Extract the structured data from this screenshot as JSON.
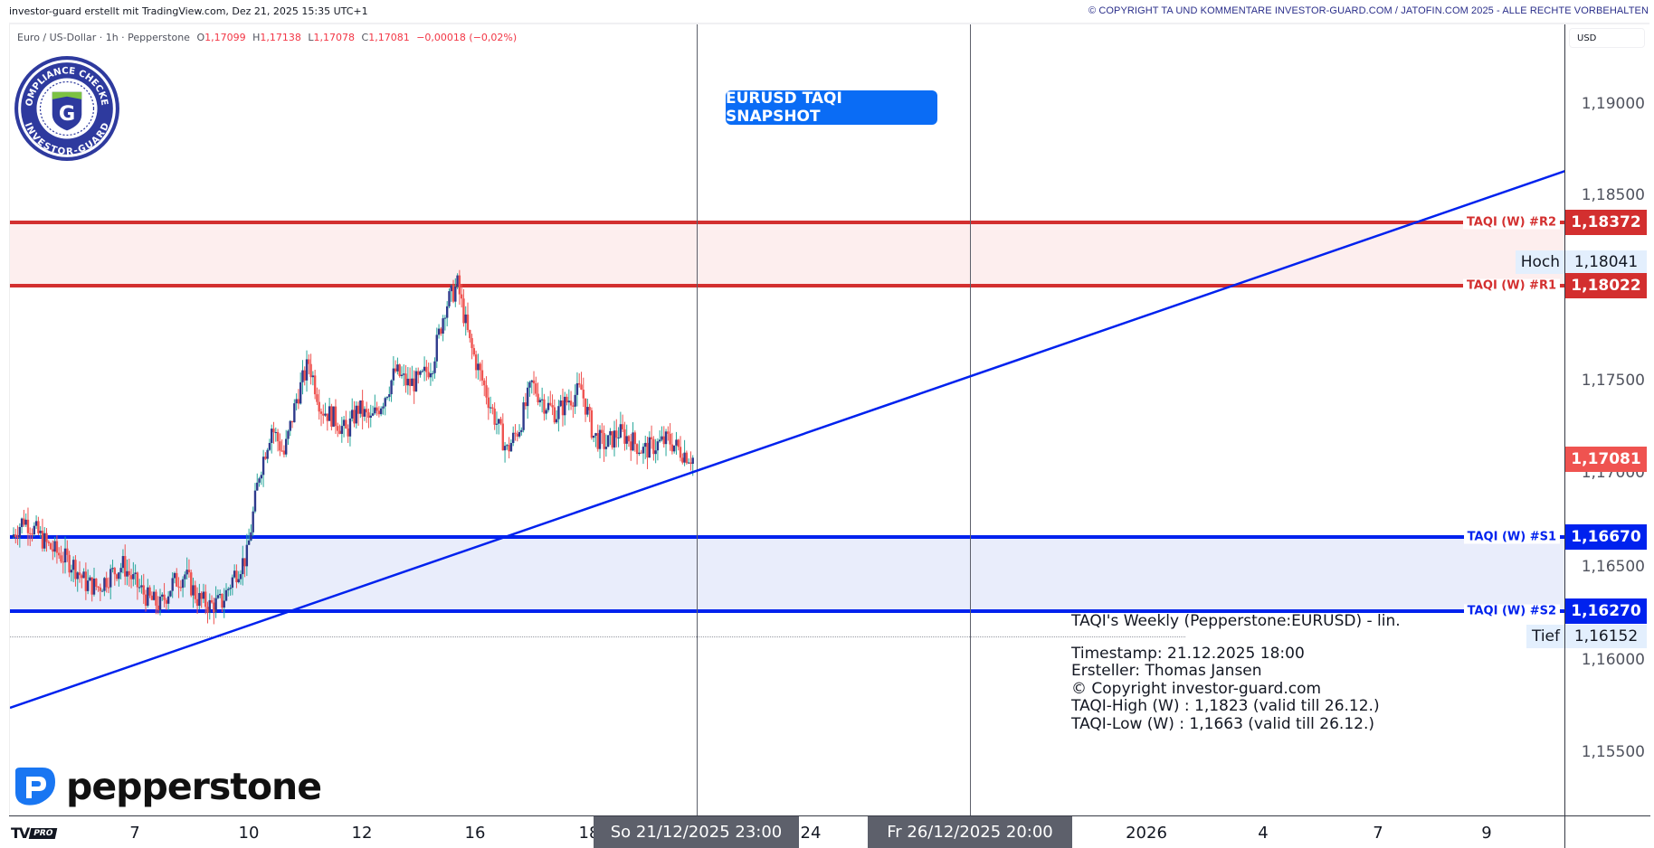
{
  "header": {
    "created_by": "investor-guard erstellt mit TradingView.com, Dez 21, 2025 15:35 UTC+1",
    "copyright": "© COPYRIGHT TA UND KOMMENTARE INVESTOR-GUARD.COM / JATOFIN.COM 2025 - ALLE RECHTE VORBEHALTEN"
  },
  "legend": {
    "symbol": "Euro / US-Dollar · 1h · Pepperstone",
    "o_label": "O",
    "o": "1,17099",
    "h_label": "H",
    "h": "1,17138",
    "l_label": "L",
    "l": "1,17078",
    "c_label": "C",
    "c": "1,17081",
    "change": "−0,00018 (−0,02%)"
  },
  "badge": {
    "top_text": "COMPLIANCE CHECKED",
    "bottom_text": "INVESTOR-GUARD",
    "letter": "G"
  },
  "snapshot_button": "EURUSD TAQI SNAPSHOT",
  "info_box": {
    "title": "TAQI's Weekly (Pepperstone:EURUSD) - lin.",
    "timestamp": "Timestamp: 21.12.2025 18:00",
    "author": "Ersteller: Thomas Jansen",
    "copyright": "© Copyright investor-guard.com",
    "high": "TAQI-High (W) : 1,1823 (valid till 26.12.)",
    "low": "TAQI-Low (W) : 1,1663 (valid till 26.12.)"
  },
  "broker_logo": "pepperstone",
  "price_axis": {
    "currency": "USD",
    "ticks": [
      "1,19000",
      "1,18500",
      "1,17500",
      "1,17000",
      "1,16500",
      "1,16000",
      "1,15500"
    ],
    "current_price": "1,17081",
    "high_label": "Hoch",
    "high_value": "1,18041",
    "low_label": "Tief",
    "low_value": "1,16152"
  },
  "levels": {
    "r2": {
      "label": "TAQI (W) #R2",
      "value": "1,18372",
      "color": "#d32f2f"
    },
    "r1": {
      "label": "TAQI (W) #R1",
      "value": "1,18022",
      "color": "#d32f2f"
    },
    "s1": {
      "label": "TAQI (W) #S1",
      "value": "1,16670",
      "color": "#0022ee"
    },
    "s2": {
      "label": "TAQI (W) #S2",
      "value": "1,16270",
      "color": "#0022ee"
    }
  },
  "time_axis": {
    "ticks": [
      "7",
      "10",
      "12",
      "16",
      "18",
      "24",
      "2026",
      "4",
      "7",
      "9"
    ],
    "highlight_1": "So 21/12/2025   23:00",
    "highlight_2": "Fr 26/12/2025   20:00",
    "logo": "TV",
    "logo_badge": "PRO"
  },
  "chart_data": {
    "type": "candlestick",
    "title": "Euro / US-Dollar · 1h · Pepperstone",
    "ylabel": "USD",
    "ylim": [
      1.151,
      1.194
    ],
    "x_tick_labels": [
      "7",
      "10",
      "12",
      "16",
      "18",
      "24",
      "2026",
      "4",
      "7",
      "9"
    ],
    "ohlc_last": {
      "open": 1.17099,
      "high": 1.17138,
      "low": 1.17078,
      "close": 1.17081,
      "change": -0.00018,
      "change_pct": -0.02
    },
    "period_high": 1.18041,
    "period_low": 1.16152,
    "horizontal_levels": [
      {
        "name": "TAQI (W) #R2",
        "value": 1.18372
      },
      {
        "name": "TAQI (W) #R1",
        "value": 1.18022
      },
      {
        "name": "TAQI (W) #S1",
        "value": 1.1667
      },
      {
        "name": "TAQI (W) #S2",
        "value": 1.1627
      }
    ],
    "zones": [
      {
        "name": "resistance zone",
        "from": 1.18022,
        "to": 1.18372,
        "color": "#fdecec"
      },
      {
        "name": "support zone",
        "from": 1.1627,
        "to": 1.1667,
        "color": "#e9edfb"
      }
    ],
    "trendline": {
      "start": {
        "x_label": "~5 Dec",
        "price": 1.1575
      },
      "end": {
        "x_label": "~10 Jan",
        "price": 1.1863
      }
    },
    "approx_close_path": [
      1.1665,
      1.1675,
      1.1668,
      1.166,
      1.1655,
      1.165,
      1.164,
      1.1638,
      1.1645,
      1.165,
      1.164,
      1.1632,
      1.1628,
      1.164,
      1.1645,
      1.1632,
      1.1628,
      1.163,
      1.1645,
      1.1655,
      1.17,
      1.1725,
      1.171,
      1.174,
      1.176,
      1.1735,
      1.173,
      1.1722,
      1.1735,
      1.1728,
      1.174,
      1.1755,
      1.1748,
      1.175,
      1.176,
      1.179,
      1.1802,
      1.177,
      1.175,
      1.173,
      1.1712,
      1.1725,
      1.1748,
      1.1738,
      1.1732,
      1.174,
      1.1745,
      1.172,
      1.1715,
      1.1722,
      1.1718,
      1.1712,
      1.1715,
      1.1718,
      1.1712,
      1.1708
    ],
    "vertical_markers": [
      "So 21/12/2025 23:00",
      "Fr 26/12/2025 20:00"
    ],
    "grid": false,
    "annotations": [
      "EURUSD TAQI SNAPSHOT",
      "TAQI's Weekly (Pepperstone:EURUSD) - lin."
    ]
  }
}
